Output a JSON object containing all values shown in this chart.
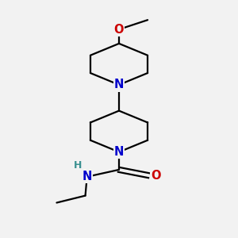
{
  "bg_color": "#f2f2f2",
  "bond_color": "#000000",
  "N_color": "#0000cc",
  "O_color": "#cc0000",
  "H_color": "#3a9090",
  "line_width": 1.6,
  "font_size": 10.5,
  "fig_size": [
    3.0,
    3.0
  ],
  "dpi": 100,
  "xlim": [
    0.15,
    0.85
  ],
  "ylim": [
    0.02,
    1.02
  ]
}
